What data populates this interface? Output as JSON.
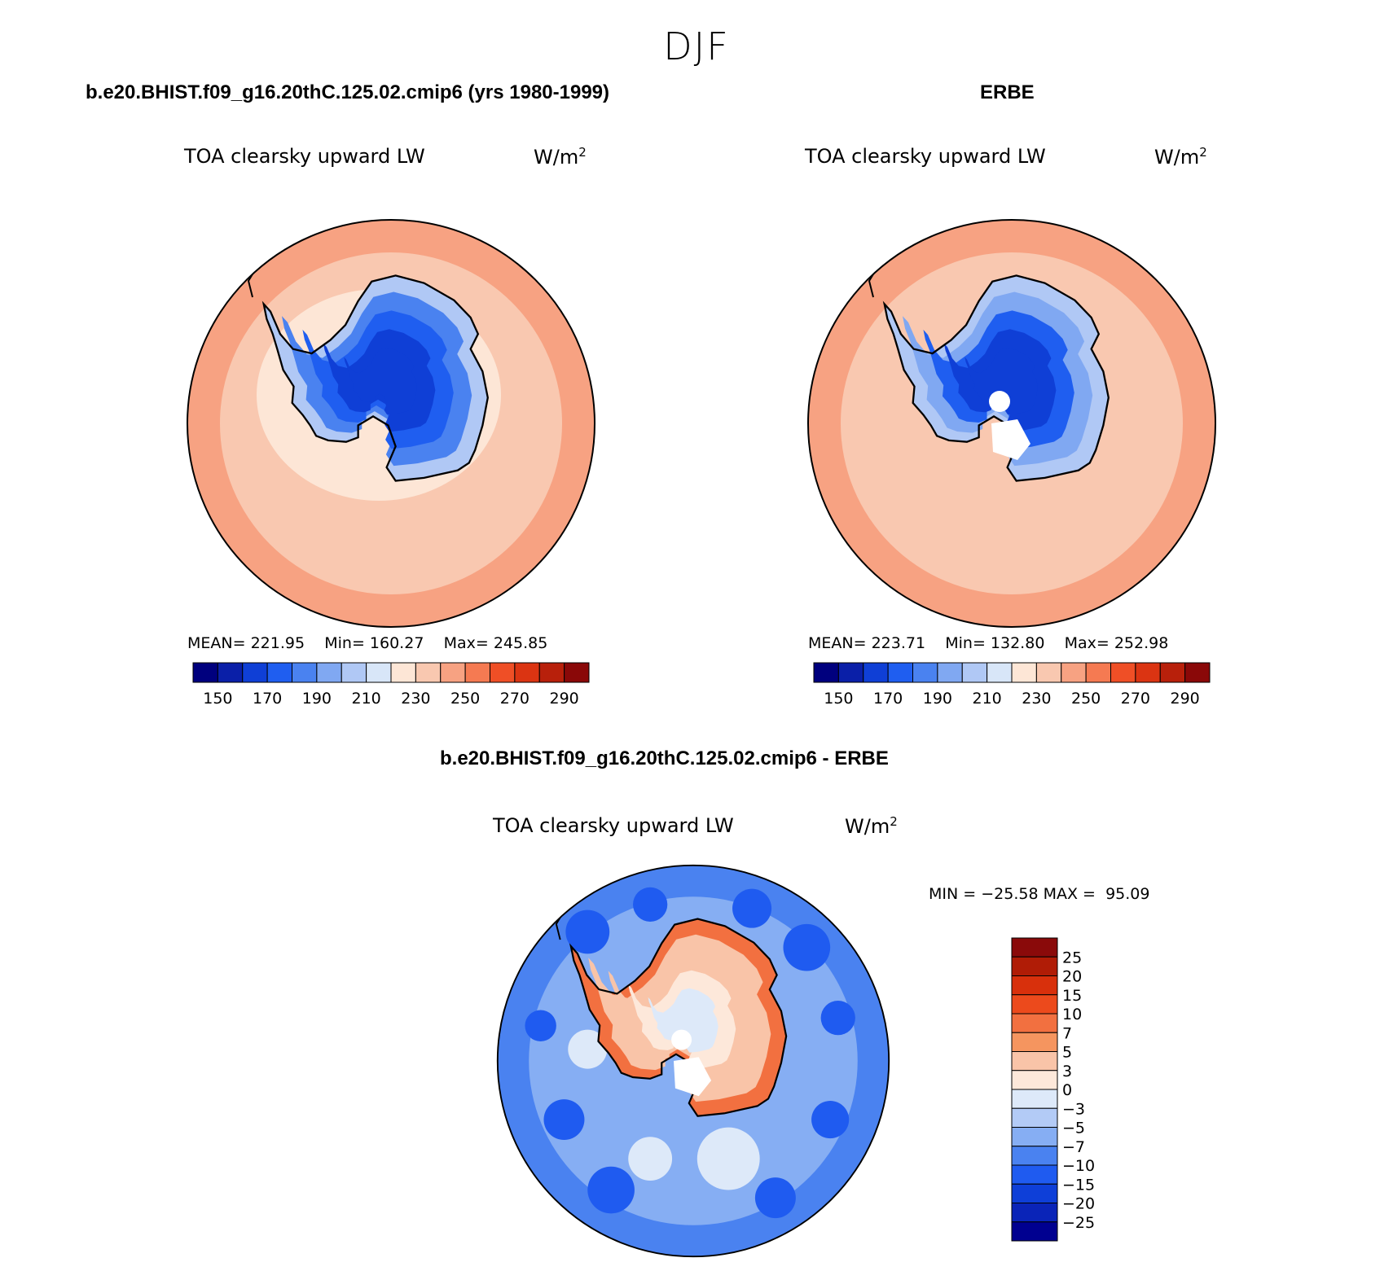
{
  "figure": {
    "title": "DJF"
  },
  "colors": {
    "abs_scale": [
      "#00007e",
      "#0a1fa8",
      "#0f3fd6",
      "#1f5ef0",
      "#4a82f0",
      "#80a8f2",
      "#b0c8f5",
      "#d8e6f8",
      "#fde6d6",
      "#f9c8b0",
      "#f7a282",
      "#f57a52",
      "#ef4f26",
      "#db3412",
      "#b8200b",
      "#8a0808"
    ],
    "diff_scale": [
      "#000090",
      "#0a24b8",
      "#0e3fd8",
      "#1f5bf0",
      "#4a82f0",
      "#86aef3",
      "#b3cbf6",
      "#dde9f9",
      "#fde8da",
      "#f9c4a8",
      "#f5955f",
      "#f27040",
      "#ec4a1c",
      "#d8300c",
      "#b01c06",
      "#8a0a0a"
    ],
    "land_outline": "#000000"
  },
  "chart_data": [
    {
      "type": "heatmap",
      "projection": "south-polar-stereographic",
      "panel_title": "b.e20.BHIST.f09_g16.20thC.125.02.cmip6 (yrs 1980-1999)",
      "variable": "TOA clearsky upward LW",
      "units": "W/m",
      "units_exp": "2",
      "stats": {
        "mean_label": "MEAN=",
        "mean": "221.95",
        "min_label": "Min=",
        "min": "160.27",
        "max_label": "Max=",
        "max": "245.85"
      },
      "colorbar_ticks": [
        "150",
        "170",
        "190",
        "210",
        "230",
        "250",
        "270",
        "290"
      ],
      "levels": [
        150,
        160,
        170,
        180,
        190,
        200,
        210,
        220,
        230,
        240,
        250,
        260,
        270,
        280,
        290
      ],
      "field": {
        "ocean_near": 235,
        "ocean_far": 242,
        "coast": 228,
        "ice_edge": 205,
        "plateau": 188,
        "interior": 176,
        "center": 166
      }
    },
    {
      "type": "heatmap",
      "projection": "south-polar-stereographic",
      "panel_title": "ERBE",
      "variable": "TOA clearsky upward LW",
      "units": "W/m",
      "units_exp": "2",
      "stats": {
        "mean_label": "MEAN=",
        "mean": "223.71",
        "min_label": "Min=",
        "min": "132.80",
        "max_label": "Max=",
        "max": "252.98"
      },
      "colorbar_ticks": [
        "150",
        "170",
        "190",
        "210",
        "230",
        "250",
        "270",
        "290"
      ],
      "levels": [
        150,
        160,
        170,
        180,
        190,
        200,
        210,
        220,
        230,
        240,
        250,
        260,
        270,
        280,
        290
      ],
      "field": {
        "ocean_near": 238,
        "ocean_far": 248,
        "coast": 230,
        "ice_edge": 205,
        "plateau": 190,
        "interior": 178,
        "center": 166
      }
    },
    {
      "type": "heatmap",
      "projection": "south-polar-stereographic",
      "panel_title": "b.e20.BHIST.f09_g16.20thC.125.02.cmip6 - ERBE",
      "variable": "TOA clearsky upward LW",
      "units": "W/m",
      "units_exp": "2",
      "stats": {
        "min_label": "MIN =",
        "min": "−25.58",
        "max_label": "MAX =",
        "max": "95.09"
      },
      "colorbar_ticks": [
        "25",
        "20",
        "15",
        "10",
        "7",
        "5",
        "3",
        "0",
        "−3",
        "−5",
        "−7",
        "−10",
        "−15",
        "−20",
        "−25"
      ],
      "levels": [
        -25,
        -20,
        -15,
        -10,
        -7,
        -5,
        -3,
        0,
        3,
        5,
        7,
        10,
        15,
        20,
        25
      ],
      "field": {
        "ocean_near": -6,
        "ocean_far": -9,
        "coast": 8,
        "ice_edge": 4,
        "plateau": 3,
        "interior": 2,
        "center": -2
      }
    }
  ]
}
